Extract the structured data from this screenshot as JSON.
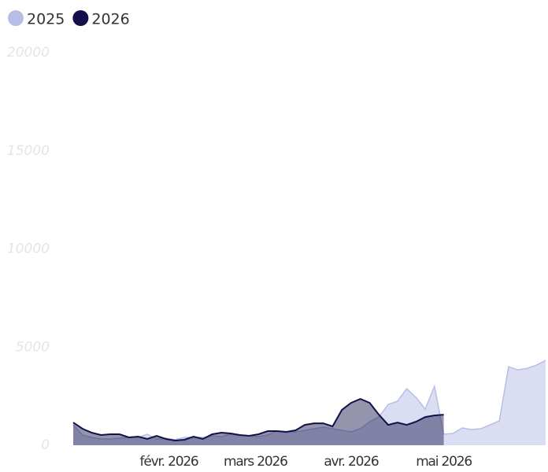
{
  "chart_data": {
    "type": "area",
    "x": [
      "2026-01-01",
      "2026-01-04",
      "2026-01-07",
      "2026-01-10",
      "2026-01-13",
      "2026-01-16",
      "2026-01-19",
      "2026-01-22",
      "2026-01-25",
      "2026-01-28",
      "2026-01-31",
      "2026-02-03",
      "2026-02-06",
      "2026-02-09",
      "2026-02-12",
      "2026-02-15",
      "2026-02-18",
      "2026-02-21",
      "2026-02-24",
      "2026-02-27",
      "2026-03-02",
      "2026-03-05",
      "2026-03-08",
      "2026-03-11",
      "2026-03-14",
      "2026-03-17",
      "2026-03-20",
      "2026-03-23",
      "2026-03-26",
      "2026-03-29",
      "2026-04-01",
      "2026-04-04",
      "2026-04-07",
      "2026-04-10",
      "2026-04-13",
      "2026-04-16",
      "2026-04-19",
      "2026-04-22",
      "2026-04-25",
      "2026-04-28",
      "2026-05-01",
      "2026-05-04",
      "2026-05-07",
      "2026-05-10",
      "2026-05-13",
      "2026-05-16",
      "2026-05-19",
      "2026-05-22",
      "2026-05-25",
      "2026-05-28",
      "2026-05-31",
      "2026-06-03"
    ],
    "series": [
      {
        "name": "2025",
        "color": "#b8bde6",
        "values": [
          1040,
          520,
          400,
          320,
          320,
          360,
          400,
          400,
          560,
          320,
          360,
          280,
          400,
          400,
          400,
          480,
          440,
          560,
          480,
          480,
          440,
          520,
          720,
          640,
          680,
          760,
          840,
          920,
          840,
          760,
          680,
          840,
          1200,
          1440,
          2080,
          2240,
          2880,
          2440,
          1840,
          3000,
          560,
          600,
          880,
          800,
          840,
          1040,
          1240,
          4000,
          3840,
          3920,
          4080,
          4320
        ]
      },
      {
        "name": "2026",
        "color": "#14114a",
        "values": [
          1160,
          840,
          640,
          520,
          560,
          560,
          400,
          440,
          320,
          480,
          320,
          240,
          280,
          440,
          320,
          560,
          640,
          600,
          520,
          480,
          560,
          720,
          720,
          680,
          760,
          1040,
          1120,
          1120,
          960,
          1800,
          2160,
          2360,
          2160,
          1560,
          1040,
          1160,
          1040,
          1200,
          1440,
          1520,
          1560,
          null,
          null,
          null,
          null,
          null,
          null,
          null,
          null,
          null,
          null,
          null
        ]
      }
    ],
    "xlim": [
      "2026-01-01",
      "2026-06-03"
    ],
    "xticks": [
      {
        "value": "2026-02-01",
        "label": "févr. 2026"
      },
      {
        "value": "2026-03-01",
        "label": "mars 2026"
      },
      {
        "value": "2026-04-01",
        "label": "avr. 2026"
      },
      {
        "value": "2026-05-01",
        "label": "mai 2026"
      }
    ],
    "ylim": [
      0,
      20000
    ],
    "yticks": [
      0,
      5000,
      10000,
      15000,
      20000
    ],
    "legend": "top-left"
  }
}
